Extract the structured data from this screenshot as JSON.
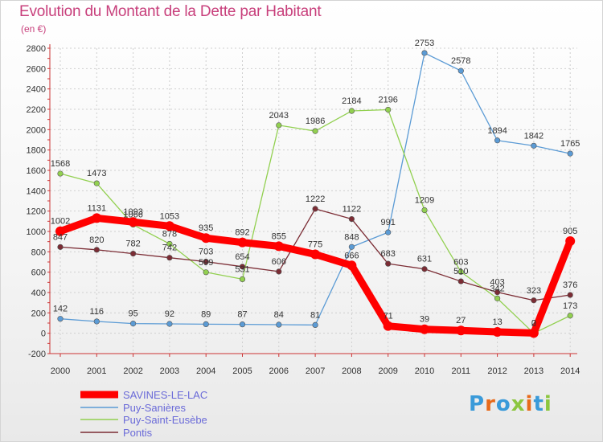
{
  "header": {
    "title": "Evolution du Montant de la Dette par Habitant",
    "unit": "(en €)"
  },
  "logo": {
    "text": "Proxiti"
  },
  "chart_data": {
    "type": "line",
    "title": "Evolution du Montant de la Dette par Habitant",
    "ylabel": "(en €)",
    "xlabel": "",
    "ylim": [
      -200,
      2800
    ],
    "y_ticks": [
      -200,
      0,
      200,
      400,
      600,
      800,
      1000,
      1200,
      1400,
      1600,
      1800,
      2000,
      2200,
      2400,
      2600,
      2800
    ],
    "categories": [
      "2000",
      "2001",
      "2002",
      "2003",
      "2004",
      "2005",
      "2006",
      "2007",
      "2008",
      "2009",
      "2010",
      "2011",
      "2012",
      "2013",
      "2014"
    ],
    "grid": true,
    "legend_position": "bottom-left",
    "series": [
      {
        "name": "SAVINES-LE-LAC",
        "color": "#ff0000",
        "values": [
          1002,
          1131,
          1093,
          1053,
          935,
          892,
          855,
          775,
          666,
          71,
          39,
          27,
          13,
          2,
          905
        ]
      },
      {
        "name": "Puy-Sanières",
        "color": "#5b9bd5",
        "values": [
          142,
          116,
          95,
          92,
          89,
          87,
          84,
          81,
          848,
          991,
          2753,
          2578,
          1894,
          1842,
          1765
        ]
      },
      {
        "name": "Puy-Saint-Eusèbe",
        "color": "#92d050",
        "values": [
          1568,
          1473,
          1066,
          878,
          599,
          531,
          2043,
          1986,
          2184,
          2196,
          1209,
          603,
          342,
          0,
          173
        ]
      },
      {
        "name": "Pontis",
        "color": "#7b2c34",
        "values": [
          847,
          820,
          782,
          742,
          703,
          654,
          606,
          1222,
          1122,
          683,
          631,
          510,
          403,
          323,
          376
        ]
      }
    ]
  }
}
